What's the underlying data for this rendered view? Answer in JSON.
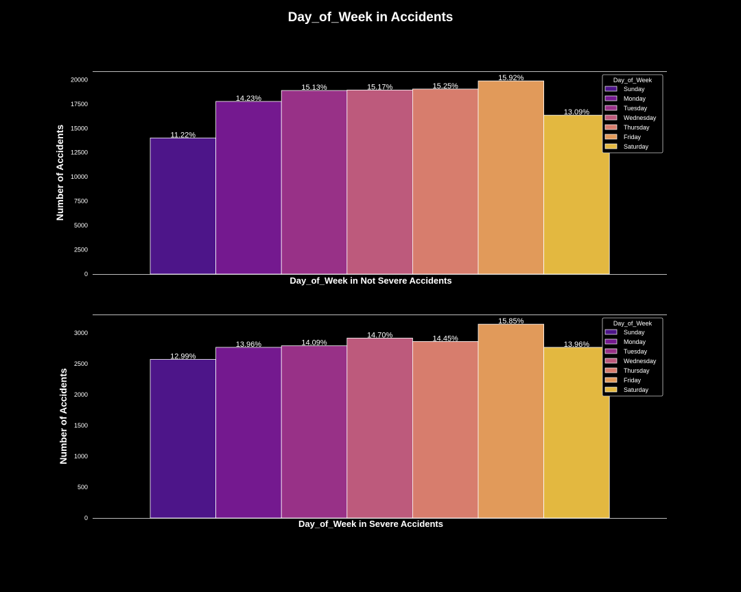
{
  "figure": {
    "title": "Day_of_Week in Accidents"
  },
  "palette": [
    "#4d1589",
    "#74198f",
    "#983187",
    "#bd5a7c",
    "#d77d6d",
    "#e19a5a",
    "#e3b840"
  ],
  "chart_data": [
    {
      "type": "bar",
      "categories": [
        "Sunday",
        "Monday",
        "Tuesday",
        "Wednesday",
        "Thursday",
        "Friday",
        "Saturday"
      ],
      "values": [
        14010,
        17770,
        18895,
        18945,
        19045,
        19880,
        16350
      ],
      "labels": [
        "11.22%",
        "14.23%",
        "15.13%",
        "15.17%",
        "15.25%",
        "15.92%",
        "13.09%"
      ],
      "xlabel": "Day_of_Week in Not Severe Accidents",
      "ylabel": "Number of Accidents",
      "yticks": [
        0,
        2500,
        5000,
        7500,
        10000,
        12500,
        15000,
        17500,
        20000
      ],
      "ylim": [
        0,
        20874
      ],
      "legend": {
        "title": "Day_of_Week",
        "position": "top-right"
      },
      "grid": false
    },
    {
      "type": "bar",
      "categories": [
        "Sunday",
        "Monday",
        "Tuesday",
        "Wednesday",
        "Thursday",
        "Friday",
        "Saturday"
      ],
      "values": [
        2570,
        2765,
        2790,
        2915,
        2860,
        3140,
        2765
      ],
      "labels": [
        "12.99%",
        "13.96%",
        "14.09%",
        "14.70%",
        "14.45%",
        "15.85%",
        "13.96%"
      ],
      "xlabel": "Day_of_Week in Severe Accidents",
      "ylabel": "Number of Accidents",
      "yticks": [
        0,
        500,
        1000,
        1500,
        2000,
        2500,
        3000
      ],
      "ylim": [
        0,
        3297
      ],
      "legend": {
        "title": "Day_of_Week",
        "position": "top-right"
      },
      "grid": false
    }
  ]
}
